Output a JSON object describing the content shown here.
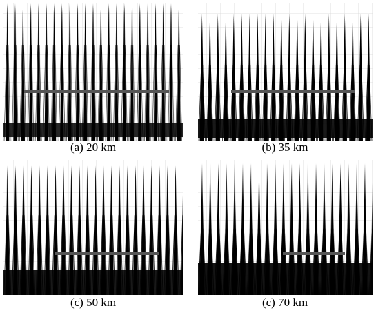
{
  "panels": [
    {
      "caption": "(a) 20 km"
    },
    {
      "caption": "(b) 35 km"
    },
    {
      "caption": "(c) 50 km"
    },
    {
      "caption": "(c) 70 km"
    }
  ]
}
